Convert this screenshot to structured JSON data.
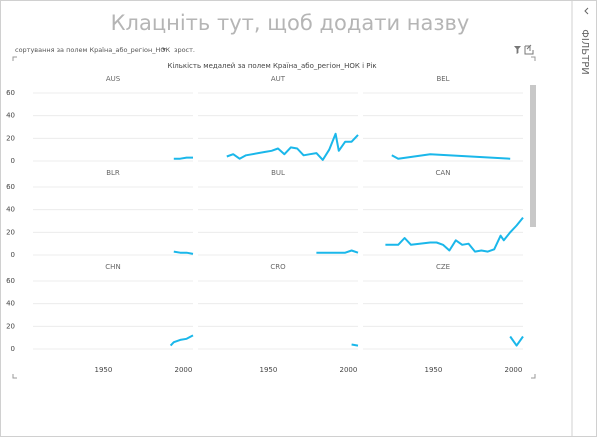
{
  "header": {
    "title": "Клацніть тут, щоб додати назву"
  },
  "sort": {
    "label": "сортування за полем Країна_або_регіон_НОК",
    "order": "зрост."
  },
  "filters_pane": {
    "title": "ФІЛЬТРИ"
  },
  "chart_data": {
    "type": "line",
    "title": "Кількість медалей за полем Країна_або_регіон_НОК і Рік",
    "color": "#1ab7ea",
    "xlim": [
      1906,
      2006
    ],
    "ylim": [
      0,
      60
    ],
    "xticks": [
      1950,
      2000
    ],
    "yticks": [
      0,
      20,
      40,
      60
    ],
    "grid": true,
    "panels": [
      {
        "name": "AUS",
        "x": [
          1994,
          1998,
          2002,
          2006
        ],
        "values": [
          2,
          2,
          3,
          3
        ]
      },
      {
        "name": "AUT",
        "x": [
          1924,
          1928,
          1932,
          1936,
          1948,
          1952,
          1956,
          1960,
          1964,
          1968,
          1972,
          1976,
          1980,
          1984,
          1988,
          1992,
          1994,
          1998,
          2002,
          2006
        ],
        "values": [
          4,
          6,
          2,
          5,
          8,
          9,
          11,
          6,
          12,
          11,
          5,
          6,
          7,
          1,
          10,
          24,
          9,
          17,
          17,
          23
        ]
      },
      {
        "name": "BEL",
        "x": [
          1924,
          1928,
          1948,
          1998
        ],
        "values": [
          5,
          2,
          6,
          2
        ]
      },
      {
        "name": "BLR",
        "x": [
          1994,
          1998,
          2002,
          2006
        ],
        "values": [
          3,
          2,
          2,
          1
        ]
      },
      {
        "name": "BUL",
        "x": [
          1980,
          1988,
          1994,
          1998,
          2002,
          2006
        ],
        "values": [
          2,
          2,
          2,
          2,
          4,
          2
        ]
      },
      {
        "name": "CAN",
        "x": [
          1920,
          1924,
          1928,
          1932,
          1936,
          1948,
          1952,
          1956,
          1960,
          1964,
          1968,
          1972,
          1976,
          1980,
          1984,
          1988,
          1992,
          1994,
          1998,
          2002,
          2006
        ],
        "values": [
          9,
          9,
          9,
          15,
          9,
          11,
          11,
          9,
          4,
          13,
          9,
          10,
          3,
          4,
          3,
          5,
          17,
          13,
          20,
          26,
          33
        ]
      },
      {
        "name": "CHN",
        "x": [
          1992,
          1994,
          1998,
          2002,
          2006
        ],
        "values": [
          3,
          6,
          8,
          9,
          12
        ]
      },
      {
        "name": "CRO",
        "x": [
          2002,
          2006
        ],
        "values": [
          4,
          3
        ]
      },
      {
        "name": "CZE",
        "x": [
          1998,
          2002,
          2006
        ],
        "values": [
          11,
          3,
          11
        ]
      }
    ]
  }
}
